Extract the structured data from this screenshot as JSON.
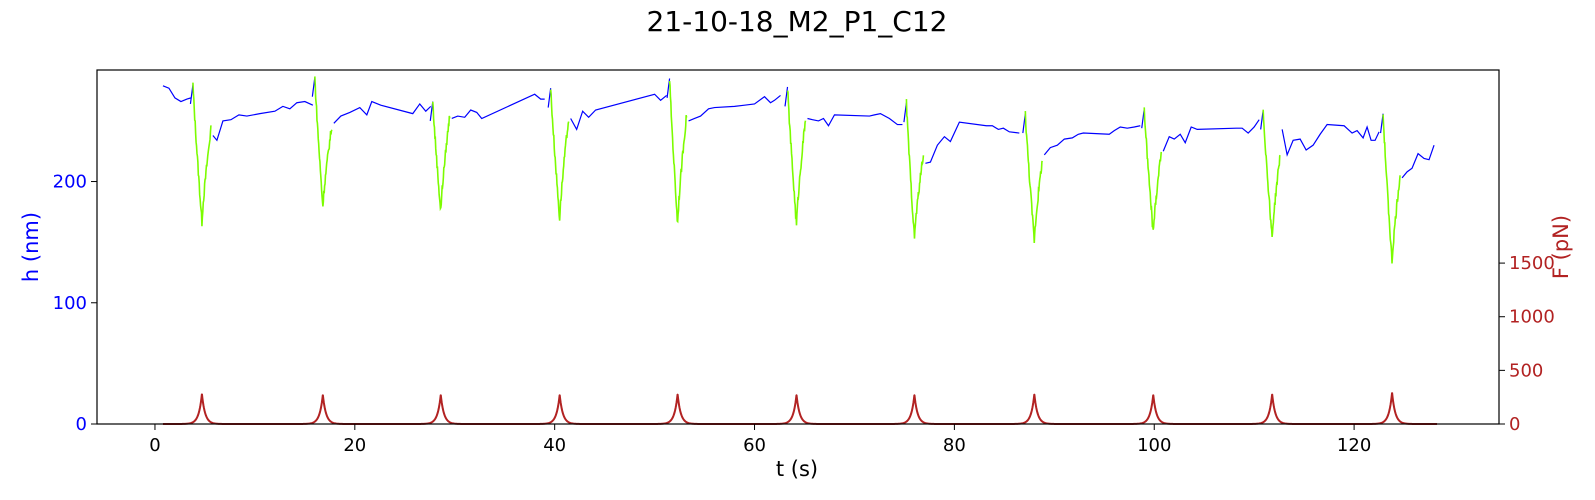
{
  "chart_data": {
    "type": "line",
    "title": "21-10-18_M2_P1_C12",
    "xlabel": "t (s)",
    "ylabel_left": "h (nm)",
    "ylabel_right": "F (pN)",
    "xlim": [
      -5.8,
      134.5
    ],
    "ylim_left": [
      0,
      292
    ],
    "ylim_right": [
      0,
      3300
    ],
    "xticks": [
      0,
      20,
      40,
      60,
      80,
      100,
      120
    ],
    "yticks_left": [
      0,
      100,
      200
    ],
    "yticks_right": [
      0,
      500,
      1000,
      1500
    ],
    "grid": false,
    "colors": {
      "height": "#0000ff",
      "approach": "#7cfc00",
      "force": "#b22222",
      "left_axis": "#0000ff",
      "right_axis": "#b22222"
    },
    "pulses": [
      {
        "start": 3.8,
        "min_t": 4.7,
        "end": 5.6,
        "h_pre": 280,
        "h_min": 166,
        "h_post": 243
      },
      {
        "start": 16.0,
        "min_t": 16.8,
        "end": 17.7,
        "h_pre": 286,
        "h_min": 179,
        "h_post": 246
      },
      {
        "start": 27.8,
        "min_t": 28.6,
        "end": 29.5,
        "h_pre": 266,
        "h_min": 175,
        "h_post": 255
      },
      {
        "start": 39.6,
        "min_t": 40.5,
        "end": 41.4,
        "h_pre": 277,
        "h_min": 169,
        "h_post": 252
      },
      {
        "start": 51.5,
        "min_t": 52.3,
        "end": 53.2,
        "h_pre": 285,
        "h_min": 165,
        "h_post": 255
      },
      {
        "start": 63.3,
        "min_t": 64.2,
        "end": 65.1,
        "h_pre": 278,
        "h_min": 164,
        "h_post": 252
      },
      {
        "start": 75.2,
        "min_t": 76.0,
        "end": 76.9,
        "h_pre": 265,
        "h_min": 153,
        "h_post": 223
      },
      {
        "start": 87.1,
        "min_t": 88.0,
        "end": 88.8,
        "h_pre": 256,
        "h_min": 151,
        "h_post": 218
      },
      {
        "start": 99.0,
        "min_t": 99.9,
        "end": 100.7,
        "h_pre": 260,
        "h_min": 157,
        "h_post": 225
      },
      {
        "start": 110.9,
        "min_t": 111.8,
        "end": 112.6,
        "h_pre": 259,
        "h_min": 153,
        "h_post": 222
      },
      {
        "start": 122.9,
        "min_t": 123.8,
        "end": 124.6,
        "h_pre": 256,
        "h_min": 133,
        "h_post": 205
      }
    ],
    "series": [
      {
        "axis": "left",
        "color": "#0000ff",
        "x": [
          0.8,
          1.4,
          2.0,
          2.6,
          3.2,
          3.6,
          5.8,
          6.2,
          6.8,
          7.6,
          8.4,
          9.2,
          10.5,
          12.0,
          12.8,
          13.5,
          14.2,
          15.0,
          15.8,
          17.9,
          18.6,
          19.5,
          20.5,
          21.2,
          21.7,
          22.6,
          25.8,
          26.5,
          27.1,
          27.6,
          29.7,
          30.3,
          31.0,
          31.6,
          32.2,
          32.7,
          38.0,
          38.6,
          39.0,
          41.6,
          42.2,
          42.8,
          43.4,
          44.1,
          50.0,
          50.6,
          51.2,
          53.4,
          54.0,
          54.6,
          55.4,
          56.0,
          58.0,
          59.0,
          60.0,
          61.0,
          61.6,
          62.0,
          62.6,
          65.3,
          65.8,
          66.4,
          66.9,
          67.4,
          68.0,
          71.5,
          72.0,
          72.6,
          73.5,
          74.3,
          74.8,
          77.1,
          77.6,
          78.3,
          79.0,
          79.6,
          80.5,
          83.2,
          83.8,
          84.4,
          84.9,
          85.5,
          86.5,
          89.0,
          89.6,
          90.3,
          91.0,
          91.8,
          92.4,
          92.9,
          95.5,
          96.0,
          96.6,
          97.3,
          98.0,
          98.6,
          100.9,
          101.5,
          102.0,
          102.6,
          103.1,
          103.7,
          104.3,
          108.2,
          108.8,
          109.4,
          110.0,
          110.5,
          112.8,
          113.3,
          113.9,
          114.6,
          115.2,
          115.9,
          116.6,
          117.3,
          119.0,
          119.8,
          120.3,
          120.9,
          121.3,
          121.7,
          122.1,
          122.5,
          124.8,
          125.3,
          125.8,
          126.4,
          127.0,
          127.5,
          128.0
        ],
        "y": [
          279,
          277,
          269,
          266,
          268,
          269,
          238,
          234,
          250,
          251,
          255,
          254,
          256,
          258,
          262,
          260,
          265,
          266,
          263,
          248,
          254,
          257,
          261,
          255,
          266,
          263,
          256,
          264,
          258,
          262,
          252,
          254,
          253,
          259,
          257,
          252,
          272,
          268,
          268,
          252,
          243,
          258,
          253,
          259,
          272,
          267,
          271,
          250,
          252,
          254,
          260,
          261,
          262,
          263,
          264,
          270,
          265,
          267,
          271,
          252,
          251,
          250,
          252,
          246,
          255,
          254,
          255,
          256,
          252,
          247,
          247,
          215,
          216,
          230,
          237,
          233,
          249,
          246,
          246,
          243,
          244,
          241,
          240,
          222,
          228,
          230,
          235,
          236,
          239,
          240,
          239,
          242,
          245,
          244,
          245,
          246,
          225,
          237,
          235,
          239,
          232,
          245,
          243,
          244,
          244,
          240,
          245,
          251,
          243,
          222,
          234,
          235,
          226,
          230,
          239,
          247,
          246,
          240,
          242,
          236,
          245,
          234,
          234,
          241,
          203,
          208,
          211,
          223,
          219,
          218,
          230
        ]
      },
      {
        "axis": "right",
        "color": "#b22222",
        "x": [
          0.8,
          128.3
        ],
        "y": [
          0,
          0
        ],
        "peaks": [
          {
            "t": 4.7,
            "f": 280
          },
          {
            "t": 16.8,
            "f": 272
          },
          {
            "t": 28.6,
            "f": 272
          },
          {
            "t": 40.5,
            "f": 272
          },
          {
            "t": 52.3,
            "f": 278
          },
          {
            "t": 64.2,
            "f": 272
          },
          {
            "t": 76.0,
            "f": 272
          },
          {
            "t": 88.0,
            "f": 278
          },
          {
            "t": 99.9,
            "f": 272
          },
          {
            "t": 111.8,
            "f": 278
          },
          {
            "t": 123.8,
            "f": 292
          }
        ]
      }
    ]
  }
}
